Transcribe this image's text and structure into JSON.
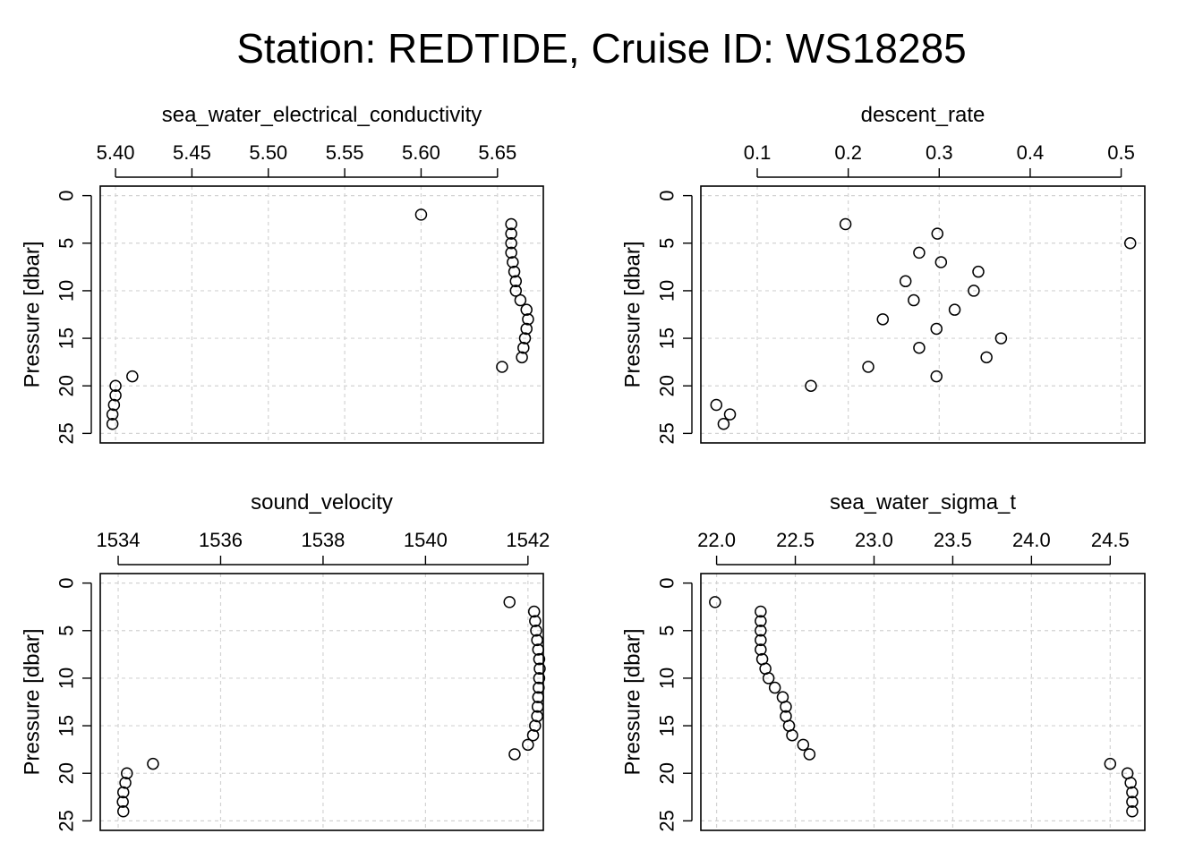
{
  "title": "Station: REDTIDE, Cruise ID: WS18285",
  "chart_data": [
    {
      "type": "scatter",
      "title": "sea_water_electrical_conductivity",
      "xlabel": "",
      "ylabel": "Pressure [dbar]",
      "xlim": [
        5.39,
        5.68
      ],
      "ylim": [
        26,
        -1
      ],
      "y_inverted": true,
      "x_axis_position": "top",
      "grid": true,
      "xticks": [
        5.4,
        5.45,
        5.5,
        5.55,
        5.6,
        5.65
      ],
      "xtick_labels": [
        "5.40",
        "5.45",
        "5.50",
        "5.55",
        "5.60",
        "5.65"
      ],
      "yticks": [
        0,
        5,
        10,
        15,
        20,
        25
      ],
      "ytick_labels": [
        "0",
        "5",
        "10",
        "15",
        "20",
        "25"
      ],
      "points": [
        {
          "x": 5.6,
          "y": 2
        },
        {
          "x": 5.659,
          "y": 3
        },
        {
          "x": 5.659,
          "y": 4
        },
        {
          "x": 5.659,
          "y": 5
        },
        {
          "x": 5.659,
          "y": 6
        },
        {
          "x": 5.66,
          "y": 7
        },
        {
          "x": 5.661,
          "y": 8
        },
        {
          "x": 5.662,
          "y": 9
        },
        {
          "x": 5.662,
          "y": 10
        },
        {
          "x": 5.665,
          "y": 11
        },
        {
          "x": 5.669,
          "y": 12
        },
        {
          "x": 5.67,
          "y": 13
        },
        {
          "x": 5.669,
          "y": 14
        },
        {
          "x": 5.668,
          "y": 15
        },
        {
          "x": 5.667,
          "y": 16
        },
        {
          "x": 5.666,
          "y": 17
        },
        {
          "x": 5.653,
          "y": 18
        },
        {
          "x": 5.411,
          "y": 19
        },
        {
          "x": 5.4,
          "y": 20
        },
        {
          "x": 5.4,
          "y": 21
        },
        {
          "x": 5.399,
          "y": 22
        },
        {
          "x": 5.398,
          "y": 23
        },
        {
          "x": 5.398,
          "y": 24
        }
      ]
    },
    {
      "type": "scatter",
      "title": "descent_rate",
      "xlabel": "",
      "ylabel": "Pressure [dbar]",
      "xlim": [
        0.038,
        0.526
      ],
      "ylim": [
        26,
        -1
      ],
      "y_inverted": true,
      "x_axis_position": "top",
      "grid": true,
      "xticks": [
        0.1,
        0.2,
        0.3,
        0.4,
        0.5
      ],
      "xtick_labels": [
        "0.1",
        "0.2",
        "0.3",
        "0.4",
        "0.5"
      ],
      "yticks": [
        0,
        5,
        10,
        15,
        20,
        25
      ],
      "ytick_labels": [
        "0",
        "5",
        "10",
        "15",
        "20",
        "25"
      ],
      "points": [
        {
          "x": 0.197,
          "y": 3
        },
        {
          "x": 0.298,
          "y": 4
        },
        {
          "x": 0.51,
          "y": 5
        },
        {
          "x": 0.278,
          "y": 6
        },
        {
          "x": 0.302,
          "y": 7
        },
        {
          "x": 0.343,
          "y": 8
        },
        {
          "x": 0.263,
          "y": 9
        },
        {
          "x": 0.338,
          "y": 10
        },
        {
          "x": 0.272,
          "y": 11
        },
        {
          "x": 0.317,
          "y": 12
        },
        {
          "x": 0.238,
          "y": 13
        },
        {
          "x": 0.297,
          "y": 14
        },
        {
          "x": 0.368,
          "y": 15
        },
        {
          "x": 0.278,
          "y": 16
        },
        {
          "x": 0.352,
          "y": 17
        },
        {
          "x": 0.222,
          "y": 18
        },
        {
          "x": 0.297,
          "y": 19
        },
        {
          "x": 0.159,
          "y": 20
        },
        {
          "x": 0.055,
          "y": 22
        },
        {
          "x": 0.07,
          "y": 23
        },
        {
          "x": 0.063,
          "y": 24
        }
      ]
    },
    {
      "type": "scatter",
      "title": "sound_velocity",
      "xlabel": "",
      "ylabel": "Pressure [dbar]",
      "xlim": [
        1533.65,
        1542.3
      ],
      "ylim": [
        26,
        -1
      ],
      "y_inverted": true,
      "x_axis_position": "top",
      "grid": true,
      "xticks": [
        1534,
        1536,
        1538,
        1540,
        1542
      ],
      "xtick_labels": [
        "1534",
        "1536",
        "1538",
        "1540",
        "1542"
      ],
      "yticks": [
        0,
        5,
        10,
        15,
        20,
        25
      ],
      "ytick_labels": [
        "0",
        "5",
        "10",
        "15",
        "20",
        "25"
      ],
      "points": [
        {
          "x": 1541.64,
          "y": 2
        },
        {
          "x": 1542.12,
          "y": 3
        },
        {
          "x": 1542.14,
          "y": 4
        },
        {
          "x": 1542.16,
          "y": 5
        },
        {
          "x": 1542.18,
          "y": 6
        },
        {
          "x": 1542.2,
          "y": 7
        },
        {
          "x": 1542.22,
          "y": 8
        },
        {
          "x": 1542.23,
          "y": 9
        },
        {
          "x": 1542.22,
          "y": 10
        },
        {
          "x": 1542.21,
          "y": 11
        },
        {
          "x": 1542.2,
          "y": 12
        },
        {
          "x": 1542.19,
          "y": 13
        },
        {
          "x": 1542.18,
          "y": 14
        },
        {
          "x": 1542.14,
          "y": 15
        },
        {
          "x": 1542.1,
          "y": 16
        },
        {
          "x": 1542.0,
          "y": 17
        },
        {
          "x": 1541.74,
          "y": 18
        },
        {
          "x": 1534.68,
          "y": 19
        },
        {
          "x": 1534.17,
          "y": 20
        },
        {
          "x": 1534.14,
          "y": 21
        },
        {
          "x": 1534.1,
          "y": 22
        },
        {
          "x": 1534.09,
          "y": 23
        },
        {
          "x": 1534.1,
          "y": 24
        }
      ]
    },
    {
      "type": "scatter",
      "title": "sea_water_sigma_t",
      "xlabel": "",
      "ylabel": "Pressure [dbar]",
      "xlim": [
        21.9,
        24.72
      ],
      "ylim": [
        26,
        -1
      ],
      "y_inverted": true,
      "x_axis_position": "top",
      "grid": true,
      "xticks": [
        22.0,
        22.5,
        23.0,
        23.5,
        24.0,
        24.5
      ],
      "xtick_labels": [
        "22.0",
        "22.5",
        "23.0",
        "23.5",
        "24.0",
        "24.5"
      ],
      "yticks": [
        0,
        5,
        10,
        15,
        20,
        25
      ],
      "ytick_labels": [
        "0",
        "5",
        "10",
        "15",
        "20",
        "25"
      ],
      "points": [
        {
          "x": 21.99,
          "y": 2
        },
        {
          "x": 22.28,
          "y": 3
        },
        {
          "x": 22.28,
          "y": 4
        },
        {
          "x": 22.28,
          "y": 5
        },
        {
          "x": 22.28,
          "y": 6
        },
        {
          "x": 22.28,
          "y": 7
        },
        {
          "x": 22.29,
          "y": 8
        },
        {
          "x": 22.31,
          "y": 9
        },
        {
          "x": 22.33,
          "y": 10
        },
        {
          "x": 22.37,
          "y": 11
        },
        {
          "x": 22.42,
          "y": 12
        },
        {
          "x": 22.44,
          "y": 13
        },
        {
          "x": 22.44,
          "y": 14
        },
        {
          "x": 22.46,
          "y": 15
        },
        {
          "x": 22.48,
          "y": 16
        },
        {
          "x": 22.55,
          "y": 17
        },
        {
          "x": 22.59,
          "y": 18
        },
        {
          "x": 24.5,
          "y": 19
        },
        {
          "x": 24.61,
          "y": 20
        },
        {
          "x": 24.63,
          "y": 21
        },
        {
          "x": 24.64,
          "y": 22
        },
        {
          "x": 24.64,
          "y": 23
        },
        {
          "x": 24.64,
          "y": 24
        }
      ]
    }
  ]
}
